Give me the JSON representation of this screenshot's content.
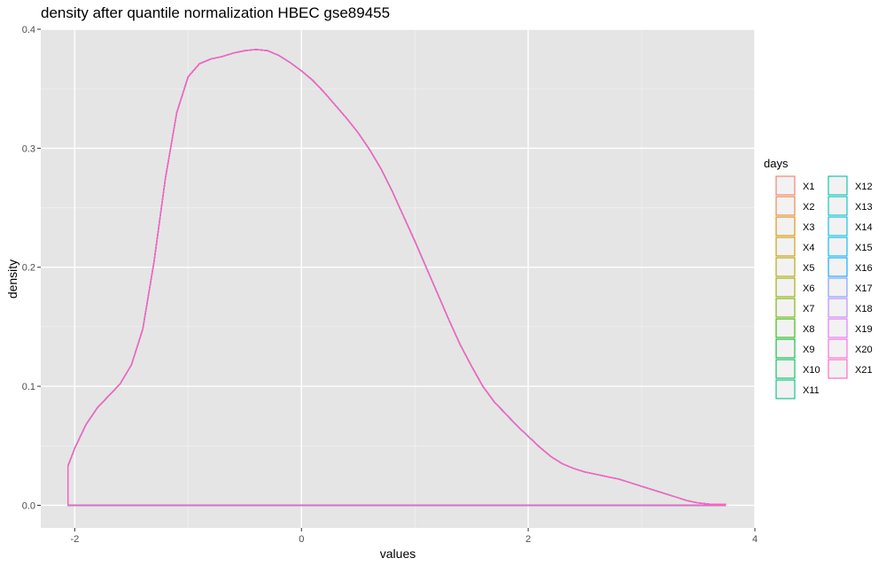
{
  "chart_data": {
    "type": "line",
    "title": "density after quantile normalization HBEC gse89455",
    "xlabel": "values",
    "ylabel": "density",
    "xlim": [
      -2.3,
      4.0
    ],
    "ylim": [
      -0.019,
      0.4
    ],
    "x_ticks": [
      -2,
      0,
      2,
      4
    ],
    "y_ticks": [
      0.0,
      0.1,
      0.2,
      0.3,
      0.4
    ],
    "x_tick_labels": [
      "-2",
      "0",
      "2",
      "4"
    ],
    "y_tick_labels": [
      "0.0",
      "0.1",
      "0.2",
      "0.3",
      "0.4"
    ],
    "grid": true,
    "panel_background": "#e5e5e5",
    "legend_title": "days",
    "legend_position": "right",
    "series_names": [
      "X1",
      "X2",
      "X3",
      "X4",
      "X5",
      "X6",
      "X7",
      "X8",
      "X9",
      "X10",
      "X11",
      "X12",
      "X13",
      "X14",
      "X15",
      "X16",
      "X17",
      "X18",
      "X19",
      "X20",
      "X21"
    ],
    "series_colors": [
      "#F8766D",
      "#EC823C",
      "#DD8D00",
      "#CA9700",
      "#B3A000",
      "#96A900",
      "#71B000",
      "#2FB600",
      "#00BA38",
      "#00BD5C",
      "#00C085",
      "#00C1A7",
      "#00BFC4",
      "#00BBDB",
      "#00B4EF",
      "#00A6FF",
      "#7F96FF",
      "#BC81FF",
      "#E26EF7",
      "#F863DF",
      "#FF62BC"
    ],
    "curve": {
      "x": [
        -2.06,
        -2.0,
        -1.9,
        -1.8,
        -1.7,
        -1.6,
        -1.5,
        -1.4,
        -1.3,
        -1.2,
        -1.1,
        -1.0,
        -0.9,
        -0.8,
        -0.7,
        -0.6,
        -0.5,
        -0.4,
        -0.3,
        -0.2,
        -0.1,
        0.0,
        0.1,
        0.2,
        0.3,
        0.4,
        0.5,
        0.6,
        0.7,
        0.8,
        0.9,
        1.0,
        1.1,
        1.2,
        1.3,
        1.4,
        1.5,
        1.6,
        1.7,
        1.8,
        1.9,
        2.0,
        2.1,
        2.2,
        2.3,
        2.4,
        2.5,
        2.6,
        2.7,
        2.8,
        2.9,
        3.0,
        3.1,
        3.2,
        3.3,
        3.4,
        3.5,
        3.6,
        3.74
      ],
      "y": [
        0.033,
        0.048,
        0.068,
        0.082,
        0.092,
        0.102,
        0.118,
        0.148,
        0.205,
        0.275,
        0.33,
        0.36,
        0.371,
        0.375,
        0.377,
        0.38,
        0.382,
        0.383,
        0.382,
        0.378,
        0.372,
        0.365,
        0.357,
        0.347,
        0.336,
        0.325,
        0.313,
        0.299,
        0.283,
        0.264,
        0.243,
        0.222,
        0.2,
        0.178,
        0.156,
        0.135,
        0.117,
        0.1,
        0.087,
        0.077,
        0.067,
        0.058,
        0.049,
        0.041,
        0.035,
        0.031,
        0.028,
        0.026,
        0.024,
        0.022,
        0.019,
        0.016,
        0.013,
        0.01,
        0.007,
        0.004,
        0.002,
        0.001,
        0.001
      ]
    }
  }
}
